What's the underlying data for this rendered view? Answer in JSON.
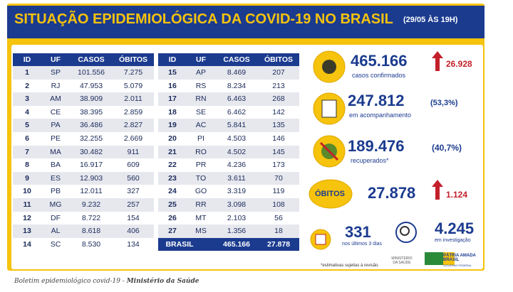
{
  "header": {
    "title": "SITUAÇÃO EPIDEMIOLÓGICA DA COVID-19 NO BRASIL",
    "date": "(29/05 ÀS 19H)"
  },
  "table": {
    "columns": [
      "ID",
      "UF",
      "CASOS",
      "ÓBITOS"
    ],
    "rows": [
      [
        "1",
        "SP",
        "101.556",
        "7.275"
      ],
      [
        "2",
        "RJ",
        "47.953",
        "5.079"
      ],
      [
        "3",
        "AM",
        "38.909",
        "2.011"
      ],
      [
        "4",
        "CE",
        "38.395",
        "2.859"
      ],
      [
        "5",
        "PA",
        "36.486",
        "2.827"
      ],
      [
        "6",
        "PE",
        "32.255",
        "2.669"
      ],
      [
        "7",
        "MA",
        "30.482",
        "911"
      ],
      [
        "8",
        "BA",
        "16.917",
        "609"
      ],
      [
        "9",
        "ES",
        "12.903",
        "560"
      ],
      [
        "10",
        "PB",
        "12.011",
        "327"
      ],
      [
        "11",
        "MG",
        "9.232",
        "257"
      ],
      [
        "12",
        "DF",
        "8.722",
        "154"
      ],
      [
        "13",
        "AL",
        "8.618",
        "406"
      ],
      [
        "14",
        "SC",
        "8.530",
        "134"
      ],
      [
        "15",
        "AP",
        "8.469",
        "207"
      ],
      [
        "16",
        "RS",
        "8.234",
        "213"
      ],
      [
        "17",
        "RN",
        "6.463",
        "268"
      ],
      [
        "18",
        "SE",
        "6.462",
        "142"
      ],
      [
        "19",
        "AC",
        "5.841",
        "135"
      ],
      [
        "20",
        "PI",
        "4.503",
        "146"
      ],
      [
        "21",
        "RO",
        "4.502",
        "145"
      ],
      [
        "22",
        "PR",
        "4.236",
        "173"
      ],
      [
        "23",
        "TO",
        "3.611",
        "70"
      ],
      [
        "24",
        "GO",
        "3.319",
        "119"
      ],
      [
        "25",
        "RR",
        "3.098",
        "108"
      ],
      [
        "26",
        "MT",
        "2.103",
        "56"
      ],
      [
        "27",
        "MS",
        "1.356",
        "18"
      ]
    ],
    "total": [
      "BRASIL",
      "465.166",
      "27.878"
    ]
  },
  "stats": {
    "confirmed": {
      "value": "465.166",
      "increase": "26.928",
      "label": "casos confirmados"
    },
    "monitoring": {
      "value": "247.812",
      "share": "(53,3%)",
      "label": "em acompanhamento"
    },
    "recovered": {
      "value": "189.476",
      "share": "(40,7%)",
      "label": "recuperados*"
    },
    "deaths": {
      "title": "ÓBITOS",
      "value": "27.878",
      "increase": "1.124"
    },
    "recent": {
      "value": "331",
      "label": "nos últimos 3 dias"
    },
    "investigation": {
      "value": "4.245",
      "label": "em investigação"
    }
  },
  "footer": {
    "note": "*estimativas sujeitas à revisão.",
    "ministry": "MINISTÉRIO DA SAÚDE",
    "brand": "PÁTRIA AMADA BRASIL",
    "brand_sub": "GOVERNO FEDERAL"
  },
  "caption": {
    "text": "Boletim epidemiológico covid-19 - ",
    "source": "Ministério da Saúde"
  }
}
